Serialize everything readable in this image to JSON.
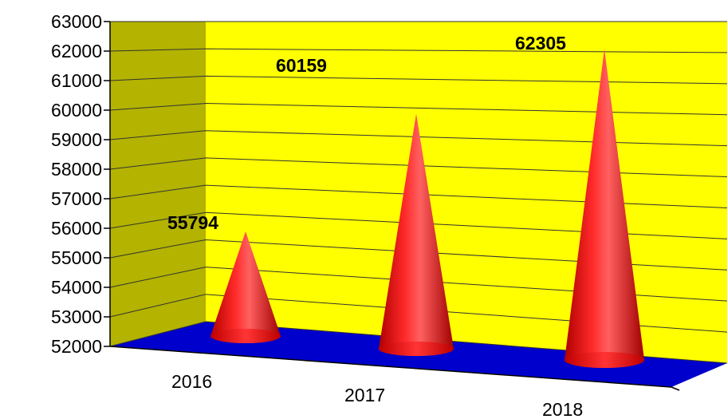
{
  "chart_data": {
    "type": "bar",
    "style": "3d-cone",
    "categories": [
      "2016",
      "2017",
      "2018"
    ],
    "values": [
      55794,
      60159,
      62305
    ],
    "data_labels": [
      "55794",
      "60159",
      "62305"
    ],
    "ylim": [
      52000,
      63000
    ],
    "y_ticks": [
      "52000",
      "53000",
      "54000",
      "55000",
      "56000",
      "57000",
      "58000",
      "59000",
      "60000",
      "61000",
      "62000",
      "63000"
    ],
    "grid": true,
    "legend": "none",
    "colors": {
      "back_wall": "#ffff00",
      "side_wall": "#b3b300",
      "floor": "#0000cc",
      "cone": "#ff0000",
      "gridline": "#333333"
    }
  }
}
